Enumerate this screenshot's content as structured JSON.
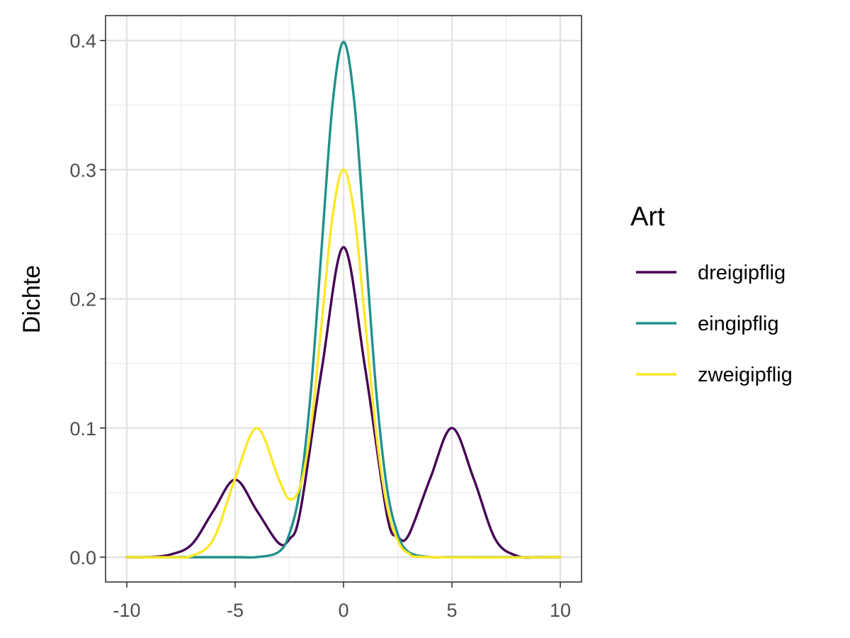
{
  "chart_data": {
    "type": "line",
    "title": "",
    "xlabel": "",
    "ylabel": "Dichte",
    "xlim": [
      -10,
      10
    ],
    "ylim": [
      0,
      0.4
    ],
    "grid": true,
    "x_ticks": [
      -10,
      -5,
      0,
      5,
      10
    ],
    "x_tick_labels": [
      "-10",
      "-5",
      "0",
      "5",
      "10"
    ],
    "y_ticks": [
      0,
      0.1,
      0.2,
      0.3,
      0.4
    ],
    "y_tick_labels": [
      "0.0",
      "0.1",
      "0.2",
      "0.3",
      "0.4"
    ],
    "legend": {
      "title": "Art",
      "position": "right"
    },
    "series": [
      {
        "name": "dreigipflig",
        "color": "#440154",
        "x": [
          -10,
          -9,
          -8,
          -7,
          -6,
          -5,
          -4,
          -3,
          -2.5,
          -2,
          -1,
          0,
          1,
          2,
          2.5,
          3,
          4,
          5,
          6,
          7,
          8,
          9,
          10
        ],
        "y": [
          0.0,
          0.0001,
          0.002,
          0.01,
          0.036,
          0.06,
          0.036,
          0.011,
          0.014,
          0.035,
          0.146,
          0.24,
          0.146,
          0.033,
          0.016,
          0.017,
          0.061,
          0.1,
          0.061,
          0.014,
          0.001,
          0.0,
          0.0
        ]
      },
      {
        "name": "eingipflig",
        "color": "#21908C",
        "x": [
          -10,
          -5,
          -4,
          -3,
          -2.5,
          -2,
          -1.5,
          -1,
          -0.5,
          0,
          0.5,
          1,
          1.5,
          2,
          2.5,
          3,
          4,
          5,
          10
        ],
        "y": [
          0.0,
          0.0,
          0.0001,
          0.004,
          0.018,
          0.054,
          0.13,
          0.242,
          0.352,
          0.399,
          0.352,
          0.242,
          0.13,
          0.054,
          0.018,
          0.004,
          0.0001,
          0.0,
          0.0
        ]
      },
      {
        "name": "zweigipflig",
        "color": "#FDE725",
        "x": [
          -10,
          -8,
          -7,
          -6,
          -5,
          -4,
          -3,
          -2.5,
          -2,
          -1.5,
          -1,
          -0.5,
          0,
          0.5,
          1,
          1.5,
          2,
          2.5,
          3,
          4,
          10
        ],
        "y": [
          0.0,
          0.0,
          0.001,
          0.014,
          0.061,
          0.1,
          0.061,
          0.045,
          0.055,
          0.101,
          0.183,
          0.265,
          0.3,
          0.265,
          0.182,
          0.097,
          0.04,
          0.013,
          0.003,
          0.0,
          0.0
        ]
      }
    ]
  }
}
